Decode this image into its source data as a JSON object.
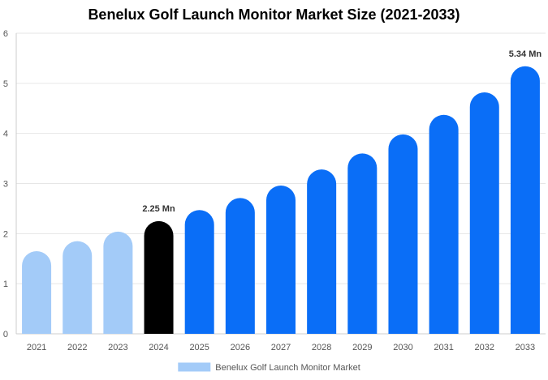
{
  "chart_data": {
    "type": "bar",
    "title": "Benelux Golf Launch Monitor Market Size (2021-2033)",
    "categories": [
      "2021",
      "2022",
      "2023",
      "2024",
      "2025",
      "2026",
      "2027",
      "2028",
      "2029",
      "2030",
      "2031",
      "2032",
      "2033"
    ],
    "series": [
      {
        "name": "Benelux Golf Launch Monitor Market",
        "values": [
          1.65,
          1.85,
          2.04,
          2.25,
          2.47,
          2.71,
          2.96,
          3.28,
          3.6,
          3.98,
          4.37,
          4.82,
          5.34
        ]
      }
    ],
    "data_labels": [
      {
        "category": "2024",
        "text": "2.25 Mn"
      },
      {
        "category": "2033",
        "text": "5.34 Mn"
      }
    ],
    "ylim": [
      0,
      6
    ],
    "yticks": [
      "0",
      "1",
      "2",
      "3",
      "4",
      "5",
      "6"
    ],
    "xlabel": "",
    "ylabel": "",
    "grid": "horizontal",
    "legend": "bottom-center",
    "colors": {
      "historical": "#a3cbf8",
      "base_year": "#000000",
      "forecast": "#0a6ef7",
      "grid": "#e6e6e6",
      "axis": "#cccccc"
    },
    "historical_categories": [
      "2021",
      "2022",
      "2023"
    ],
    "base_year_category": "2024"
  }
}
